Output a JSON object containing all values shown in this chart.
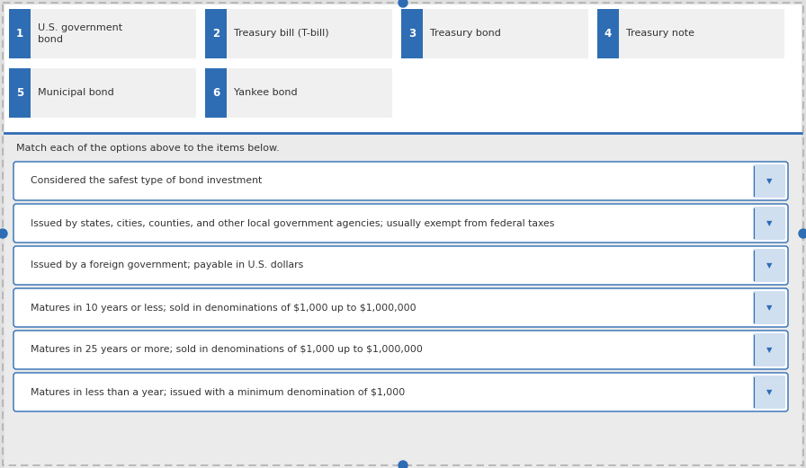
{
  "bg_outer": "#e0e0e0",
  "bg_top": "#ffffff",
  "bg_bottom": "#ebebeb",
  "card_bg": "#f0f0f0",
  "blue": "#2e6db4",
  "white": "#ffffff",
  "border_blue": "#2e6db4",
  "text_dark": "#333333",
  "text_medium": "#444444",
  "options": [
    {
      "num": "1",
      "label": "U.S. government\nbond"
    },
    {
      "num": "2",
      "label": "Treasury bill (T-bill)"
    },
    {
      "num": "3",
      "label": "Treasury bond"
    },
    {
      "num": "4",
      "label": "Treasury note"
    },
    {
      "num": "5",
      "label": "Municipal bond"
    },
    {
      "num": "6",
      "label": "Yankee bond"
    }
  ],
  "instruction": "Match each of the options above to the items below.",
  "dropdown_items": [
    "Considered the safest type of bond investment",
    "Issued by states, cities, counties, and other local government agencies; usually exempt from federal taxes",
    "Issued by a foreign government; payable in U.S. dollars",
    "Matures in 10 years or less; sold in denominations of $1,000 up to $1,000,000",
    "Matures in 25 years or more; sold in denominations of $1,000 up to $1,000,000",
    "Matures in less than a year; issued with a minimum denomination of $1,000"
  ],
  "dropdown_items_safe": [
    "Considered the safest type of bond investment",
    "Issued by states, cities, counties, and other local government agencies; usually exempt from federal taxes",
    "Issued by a foreign government; payable in U.S. dollars",
    "Matures in 10 years or less; sold in denominations of \\$1,000 up to \\$1,000,000",
    "Matures in 25 years or more; sold in denominations of \\$1,000 up to \\$1,000,000",
    "Matures in less than a year; issued with a minimum denomination of \\$1,000"
  ]
}
